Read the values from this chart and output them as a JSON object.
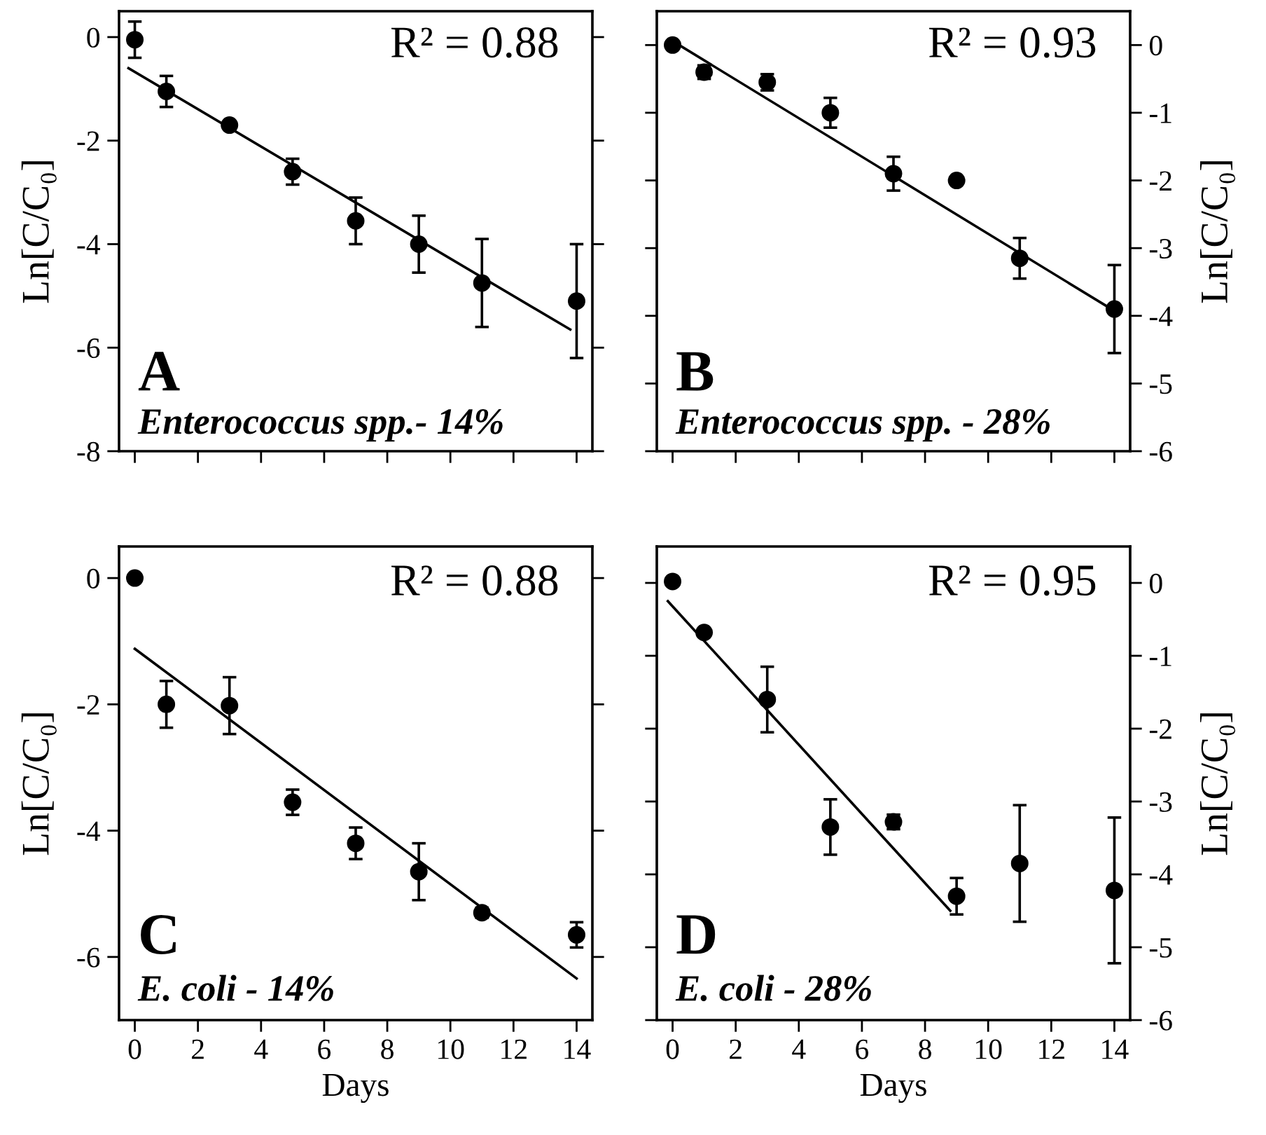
{
  "chart_data": [
    {
      "type": "scatter",
      "ylabel": "Ln[C/C₀]",
      "annotations": [
        "R² = 0.88",
        "A",
        "Enterococcus spp.- 14%"
      ],
      "xlim": [
        -0.5,
        14.5
      ],
      "xticks": [
        0,
        2,
        4,
        6,
        8,
        10,
        12,
        14
      ],
      "ylim": [
        -8,
        0.5
      ],
      "yticks": [
        0,
        -2,
        -4,
        -6,
        -8
      ],
      "tick_labels": "y",
      "series": [
        {
          "type": "scatter",
          "marker": "circle",
          "color": "#000000",
          "x": [
            0,
            1,
            3,
            5,
            7,
            9,
            11,
            14
          ],
          "values": [
            -0.05,
            -1.05,
            -1.7,
            -2.6,
            -3.55,
            -4.0,
            -4.75,
            -5.1
          ],
          "errors": [
            0.35,
            0.3,
            null,
            0.25,
            0.45,
            0.55,
            0.85,
            1.1
          ]
        },
        {
          "type": "line",
          "color": "#000000",
          "x": [
            -0.2,
            13.8
          ],
          "values": [
            -0.6,
            -5.65
          ]
        }
      ]
    },
    {
      "type": "scatter",
      "y2label": "Ln[C/C₀]",
      "annotations": [
        "R² = 0.93",
        "B",
        "Enterococcus spp. - 28%"
      ],
      "xlim": [
        -0.5,
        14.5
      ],
      "xticks": [
        0,
        2,
        4,
        6,
        8,
        10,
        12,
        14
      ],
      "y2lim": [
        -6,
        0.5
      ],
      "y2ticks": [
        0,
        -1,
        -2,
        -3,
        -4,
        -5,
        -6
      ],
      "tick_labels": "y",
      "series": [
        {
          "type": "scatter",
          "marker": "circle",
          "axis": "y2",
          "color": "#000000",
          "x": [
            0,
            1,
            3,
            5,
            7,
            9,
            11,
            14
          ],
          "values": [
            0.0,
            -0.4,
            -0.55,
            -1.0,
            -1.9,
            -2.0,
            -3.15,
            -3.9
          ],
          "errors": [
            0.05,
            0.1,
            0.12,
            0.22,
            0.25,
            null,
            0.3,
            0.65
          ]
        },
        {
          "type": "line",
          "axis": "y2",
          "color": "#000000",
          "x": [
            0.1,
            13.8
          ],
          "values": [
            0.03,
            -3.87
          ]
        }
      ]
    },
    {
      "type": "scatter",
      "xlabel": "Days",
      "ylabel": "Ln[C/C₀]",
      "annotations": [
        "R² = 0.88",
        "C",
        "E. coli - 14%"
      ],
      "xlim": [
        -0.5,
        14.5
      ],
      "xticks": [
        0,
        2,
        4,
        6,
        8,
        10,
        12,
        14
      ],
      "ylim": [
        -7,
        0.5
      ],
      "yticks": [
        0,
        -2,
        -4,
        -6
      ],
      "series": [
        {
          "type": "scatter",
          "marker": "circle",
          "color": "#000000",
          "x": [
            0,
            1,
            3,
            5,
            7,
            9,
            11,
            14
          ],
          "values": [
            0.0,
            -2.0,
            -2.02,
            -3.55,
            -4.2,
            -4.65,
            -5.3,
            -5.65
          ],
          "errors": [
            null,
            0.37,
            0.45,
            0.2,
            0.25,
            0.45,
            0.08,
            0.2
          ]
        },
        {
          "type": "line",
          "color": "#000000",
          "x": [
            0,
            14
          ],
          "values": [
            -1.12,
            -6.34
          ]
        }
      ]
    },
    {
      "type": "scatter",
      "xlabel": "Days",
      "y2label": "Ln[C/C₀]",
      "annotations": [
        "R² = 0.95",
        "D",
        "E. coli - 28%"
      ],
      "xlim": [
        -0.5,
        14.5
      ],
      "xticks": [
        0,
        2,
        4,
        6,
        8,
        10,
        12,
        14
      ],
      "y2lim": [
        -6,
        0.5
      ],
      "y2ticks": [
        0,
        -1,
        -2,
        -3,
        -4,
        -5,
        -6
      ],
      "series": [
        {
          "type": "scatter",
          "marker": "circle",
          "axis": "y2",
          "color": "#000000",
          "x": [
            0,
            1,
            3,
            5,
            7,
            9,
            11,
            14
          ],
          "values": [
            0.02,
            -0.68,
            -1.6,
            -3.35,
            -3.28,
            -4.3,
            -3.85,
            -4.22
          ],
          "errors": [
            null,
            0.05,
            0.45,
            0.38,
            0.1,
            0.25,
            0.8,
            1.0
          ]
        },
        {
          "type": "line",
          "axis": "y2",
          "color": "#000000",
          "x": [
            -0.15,
            8.8
          ],
          "values": [
            -0.25,
            -4.5
          ]
        }
      ]
    }
  ]
}
